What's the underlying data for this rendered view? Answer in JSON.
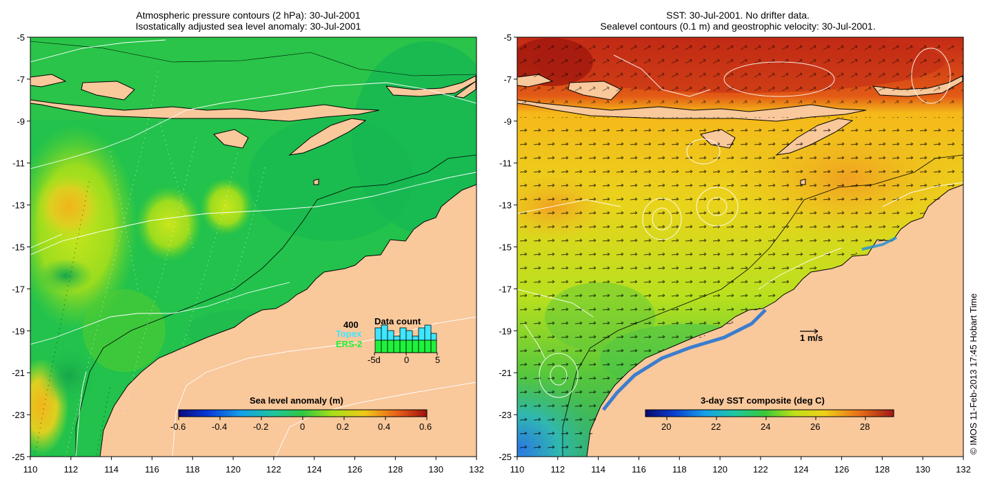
{
  "left_panel": {
    "title_line1": "Atmospheric pressure contours (2 hPa): 30-Jul-2001",
    "title_line2": "Isostatically adjusted sea level anomaly: 30-Jul-2001",
    "colorbar_title": "Sea level anomaly (m)",
    "colorbar_ticks": [
      "-0.6",
      "-0.4",
      "-0.2",
      "0",
      "0.2",
      "0.4",
      "0.6"
    ],
    "data_count": {
      "title": "Data count",
      "max_label": "400",
      "topex_label": "Topex",
      "ers2_label": "ERS-2",
      "axis_labels": [
        "-5d",
        "0",
        "5"
      ]
    }
  },
  "right_panel": {
    "title_line1": "SST: 30-Jul-2001. No drifter data.",
    "title_line2": "Sealevel contours (0.1 m) and geostrophic velocity: 30-Jul-2001.",
    "colorbar_title": "3-day SST composite (deg C)",
    "colorbar_ticks": [
      "20",
      "22",
      "24",
      "26",
      "28"
    ],
    "velocity_scale_label": "1 m/s"
  },
  "axes": {
    "lon_ticks": [
      "110",
      "112",
      "114",
      "116",
      "118",
      "120",
      "122",
      "124",
      "126",
      "128",
      "130",
      "132"
    ],
    "lat_ticks": [
      "-5",
      "-7",
      "-9",
      "-11",
      "-13",
      "-15",
      "-17",
      "-19",
      "-21",
      "-23",
      "-25"
    ]
  },
  "credit": "© IMOS 11-Feb-2013 17:45 Hobart Time",
  "colors": {
    "land": "#f9c89b",
    "sla_background": "#22c24c",
    "sst_warm": "#f08a1a",
    "sst_hot": "#b8281a",
    "coast": "#000000",
    "contour": "#ffffff"
  }
}
